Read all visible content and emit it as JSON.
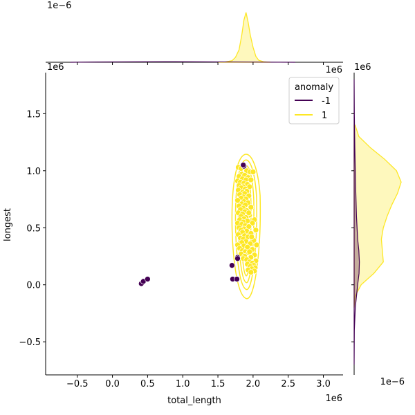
{
  "chart_data": {
    "type": "scatter",
    "title": "",
    "xlabel": "total_length",
    "ylabel": "longest",
    "x_exponent": "1e6",
    "y_exponent": "1e6",
    "top_marginal_exponent": "1e−6",
    "top_marginal_x_exponent": "1e6",
    "right_marginal_y_exponent": "1e6",
    "right_marginal_exponent": "1e−6",
    "xlim": [
      -0.95,
      3.28
    ],
    "ylim": [
      -0.79,
      1.86
    ],
    "xticks": [
      -0.5,
      0.0,
      0.5,
      1.0,
      1.5,
      2.0,
      2.5,
      3.0
    ],
    "xtick_labels": [
      "−0.5",
      "0.0",
      "0.5",
      "1.0",
      "1.5",
      "2.0",
      "2.5",
      "3.0"
    ],
    "yticks": [
      -0.5,
      0.0,
      0.5,
      1.0,
      1.5
    ],
    "ytick_labels": [
      "−0.5",
      "0.0",
      "0.5",
      "1.0",
      "1.5"
    ],
    "legend": {
      "title": "anomaly",
      "placement": "top-right",
      "entries": [
        {
          "label": "-1",
          "color": "#440154"
        },
        {
          "label": "1",
          "color": "#fde725"
        }
      ]
    },
    "series": [
      {
        "name": "-1",
        "color": "#440154",
        "points": [
          [
            0.41,
            0.01
          ],
          [
            0.44,
            0.03
          ],
          [
            0.5,
            0.05
          ],
          [
            1.7,
            0.17
          ],
          [
            1.71,
            0.05
          ],
          [
            1.77,
            0.05
          ],
          [
            1.78,
            0.24
          ],
          [
            1.78,
            0.23
          ],
          [
            1.87,
            1.04
          ],
          [
            1.86,
            1.05
          ]
        ]
      },
      {
        "name": "1",
        "color": "#fde725",
        "points": [
          [
            1.87,
            1.05
          ],
          [
            1.79,
            1.03
          ],
          [
            1.83,
            1.02
          ],
          [
            1.91,
            1.0
          ],
          [
            1.96,
            0.99
          ],
          [
            2.0,
            0.99
          ],
          [
            1.84,
            0.97
          ],
          [
            1.88,
            0.96
          ],
          [
            1.8,
            0.95
          ],
          [
            1.93,
            0.94
          ],
          [
            1.85,
            0.93
          ],
          [
            1.9,
            0.92
          ],
          [
            1.97,
            0.92
          ],
          [
            1.78,
            0.91
          ],
          [
            1.82,
            0.9
          ],
          [
            1.87,
            0.89
          ],
          [
            1.92,
            0.88
          ],
          [
            1.8,
            0.87
          ],
          [
            1.86,
            0.86
          ],
          [
            1.95,
            0.86
          ],
          [
            1.83,
            0.85
          ],
          [
            1.89,
            0.84
          ],
          [
            1.79,
            0.83
          ],
          [
            1.91,
            0.82
          ],
          [
            1.85,
            0.81
          ],
          [
            1.88,
            0.8
          ],
          [
            1.81,
            0.79
          ],
          [
            1.94,
            0.78
          ],
          [
            1.86,
            0.77
          ],
          [
            1.83,
            0.76
          ],
          [
            1.9,
            0.75
          ],
          [
            1.78,
            0.74
          ],
          [
            1.87,
            0.73
          ],
          [
            1.93,
            0.72
          ],
          [
            1.84,
            0.71
          ],
          [
            1.89,
            0.7
          ],
          [
            1.8,
            0.69
          ],
          [
            1.97,
            0.68
          ],
          [
            1.86,
            0.67
          ],
          [
            1.82,
            0.66
          ],
          [
            1.91,
            0.65
          ],
          [
            1.88,
            0.64
          ],
          [
            1.79,
            0.63
          ],
          [
            1.85,
            0.62
          ],
          [
            1.95,
            0.61
          ],
          [
            1.83,
            0.6
          ],
          [
            1.9,
            0.59
          ],
          [
            1.87,
            0.58
          ],
          [
            1.81,
            0.57
          ],
          [
            2.02,
            0.57
          ],
          [
            1.92,
            0.56
          ],
          [
            1.86,
            0.55
          ],
          [
            1.78,
            0.54
          ],
          [
            1.99,
            0.54
          ],
          [
            1.84,
            0.53
          ],
          [
            1.89,
            0.52
          ],
          [
            1.94,
            0.51
          ],
          [
            1.8,
            0.5
          ],
          [
            1.87,
            0.49
          ],
          [
            2.04,
            0.48
          ],
          [
            1.83,
            0.48
          ],
          [
            1.91,
            0.47
          ],
          [
            1.85,
            0.46
          ],
          [
            1.97,
            0.45
          ],
          [
            1.79,
            0.44
          ],
          [
            1.88,
            0.43
          ],
          [
            1.93,
            0.42
          ],
          [
            1.82,
            0.41
          ],
          [
            1.86,
            0.4
          ],
          [
            2.01,
            0.39
          ],
          [
            1.9,
            0.38
          ],
          [
            1.84,
            0.37
          ],
          [
            1.96,
            0.36
          ],
          [
            1.78,
            0.35
          ],
          [
            2.05,
            0.35
          ],
          [
            1.87,
            0.34
          ],
          [
            1.92,
            0.33
          ],
          [
            1.81,
            0.32
          ],
          [
            1.99,
            0.31
          ],
          [
            1.85,
            0.3
          ],
          [
            1.89,
            0.29
          ],
          [
            1.94,
            0.28
          ],
          [
            1.83,
            0.27
          ],
          [
            2.02,
            0.26
          ],
          [
            1.88,
            0.25
          ],
          [
            1.97,
            0.24
          ],
          [
            1.86,
            0.23
          ],
          [
            1.91,
            0.22
          ],
          [
            2.04,
            0.21
          ],
          [
            1.95,
            0.2
          ],
          [
            1.99,
            0.19
          ],
          [
            1.92,
            0.18
          ],
          [
            2.01,
            0.17
          ],
          [
            1.96,
            0.16
          ],
          [
            2.03,
            0.15
          ],
          [
            1.98,
            0.14
          ],
          [
            1.93,
            0.13
          ],
          [
            2.02,
            0.12
          ],
          [
            1.97,
            0.11
          ],
          [
            1.95,
            0.29
          ],
          [
            1.98,
            0.42
          ],
          [
            1.94,
            0.63
          ]
        ]
      }
    ],
    "contours": [
      {
        "series": "1",
        "color": "#fde725",
        "center": [
          1.9,
          0.58
        ],
        "levels": [
          {
            "rx": 0.2,
            "ry_top": 0.68,
            "ry_bottom": 0.7
          },
          {
            "rx": 0.15,
            "ry_top": 0.62,
            "ry_bottom": 0.62
          },
          {
            "rx": 0.11,
            "ry_top": 0.56,
            "ry_bottom": 0.56
          },
          {
            "rx": 0.07,
            "ry_top": 0.5,
            "ry_bottom": 0.5
          }
        ]
      }
    ],
    "top_marginal": {
      "x": [
        1.5,
        1.6,
        1.7,
        1.75,
        1.8,
        1.84,
        1.87,
        1.9,
        1.93,
        1.96,
        2.0,
        2.04,
        2.08,
        2.15,
        2.25
      ],
      "density_yellow": [
        0.0,
        0.005,
        0.03,
        0.1,
        0.25,
        0.55,
        0.85,
        1.0,
        0.8,
        0.55,
        0.3,
        0.12,
        0.04,
        0.01,
        0.0
      ],
      "density_purple_ratio": 0.015
    },
    "right_marginal": {
      "y": [
        -0.2,
        -0.1,
        0.0,
        0.1,
        0.2,
        0.3,
        0.4,
        0.5,
        0.6,
        0.7,
        0.8,
        0.9,
        1.0,
        1.1,
        1.2,
        1.3,
        1.4
      ],
      "density_yellow": [
        0.0,
        0.02,
        0.15,
        0.42,
        0.62,
        0.6,
        0.58,
        0.62,
        0.7,
        0.8,
        0.92,
        1.0,
        0.9,
        0.65,
        0.35,
        0.1,
        0.02
      ],
      "density_purple_y": [
        -0.7,
        -0.4,
        -0.2,
        0.0,
        0.1,
        0.2,
        0.3,
        0.4,
        0.6,
        0.9,
        1.2,
        1.5,
        1.8
      ],
      "density_purple": [
        0.0,
        0.02,
        0.1,
        0.3,
        0.42,
        0.45,
        0.4,
        0.3,
        0.2,
        0.12,
        0.06,
        0.02,
        0.0
      ]
    }
  }
}
